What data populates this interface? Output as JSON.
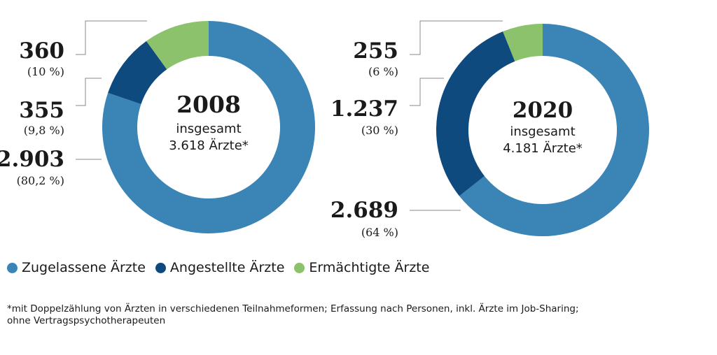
{
  "chart_data": [
    {
      "type": "donut",
      "center": {
        "year": "2008",
        "line1": "insgesamt",
        "line2": "3.618 Ärzte*"
      },
      "total": 3618,
      "segments": [
        {
          "series": "Zugelassene Ärzte",
          "value": 2903,
          "label": "2.903",
          "pct": "(80,2 %)"
        },
        {
          "series": "Angestellte Ärzte",
          "value": 355,
          "label": "355",
          "pct": "(9,8 %)"
        },
        {
          "series": "Ermächtigte Ärzte",
          "value": 360,
          "label": "360",
          "pct": "(10 %)"
        }
      ]
    },
    {
      "type": "donut",
      "center": {
        "year": "2020",
        "line1": "insgesamt",
        "line2": "4.181 Ärzte*"
      },
      "total": 4181,
      "segments": [
        {
          "series": "Zugelassene Ärzte",
          "value": 2689,
          "label": "2.689",
          "pct": "(64 %)"
        },
        {
          "series": "Angestellte Ärzte",
          "value": 1237,
          "label": "1.237",
          "pct": "(30 %)"
        },
        {
          "series": "Ermächtigte Ärzte",
          "value": 255,
          "label": "255",
          "pct": "(6 %)"
        }
      ]
    }
  ],
  "colors": {
    "Zugelassene Ärzte": "#3a84b6",
    "Angestellte Ärzte": "#0f4a7f",
    "Ermächtigte Ärzte": "#8cc26b"
  },
  "legend": [
    {
      "label": "Zugelassene Ärzte",
      "color": "#3a84b6"
    },
    {
      "label": "Angestellte Ärzte",
      "color": "#0f4a7f"
    },
    {
      "label": "Ermächtigte Ärzte",
      "color": "#8cc26b"
    }
  ],
  "footnote": {
    "line1": "*mit Doppelzählung von Ärzten in verschiedenen Teilnahmeformen; Erfassung nach Personen, inkl. Ärzte im Job-Sharing;",
    "line2": "ohne Vertragspsychotherapeuten"
  }
}
